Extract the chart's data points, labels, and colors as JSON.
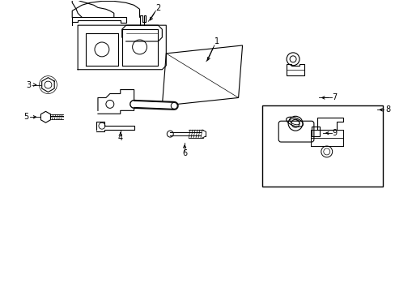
{
  "bg_color": "#ffffff",
  "lc": "#000000",
  "lw": 0.8,
  "fig_w": 4.89,
  "fig_h": 3.6,
  "dpi": 100,
  "labels": {
    "1": [
      265,
      308,
      253,
      278
    ],
    "2": [
      195,
      348,
      183,
      332
    ],
    "3": [
      38,
      256,
      53,
      256
    ],
    "4": [
      148,
      193,
      148,
      204
    ],
    "5": [
      35,
      216,
      50,
      216
    ],
    "6": [
      228,
      172,
      228,
      184
    ],
    "7": [
      432,
      240,
      410,
      240
    ],
    "8": [
      468,
      225,
      468,
      225
    ],
    "9": [
      432,
      196,
      410,
      196
    ]
  }
}
